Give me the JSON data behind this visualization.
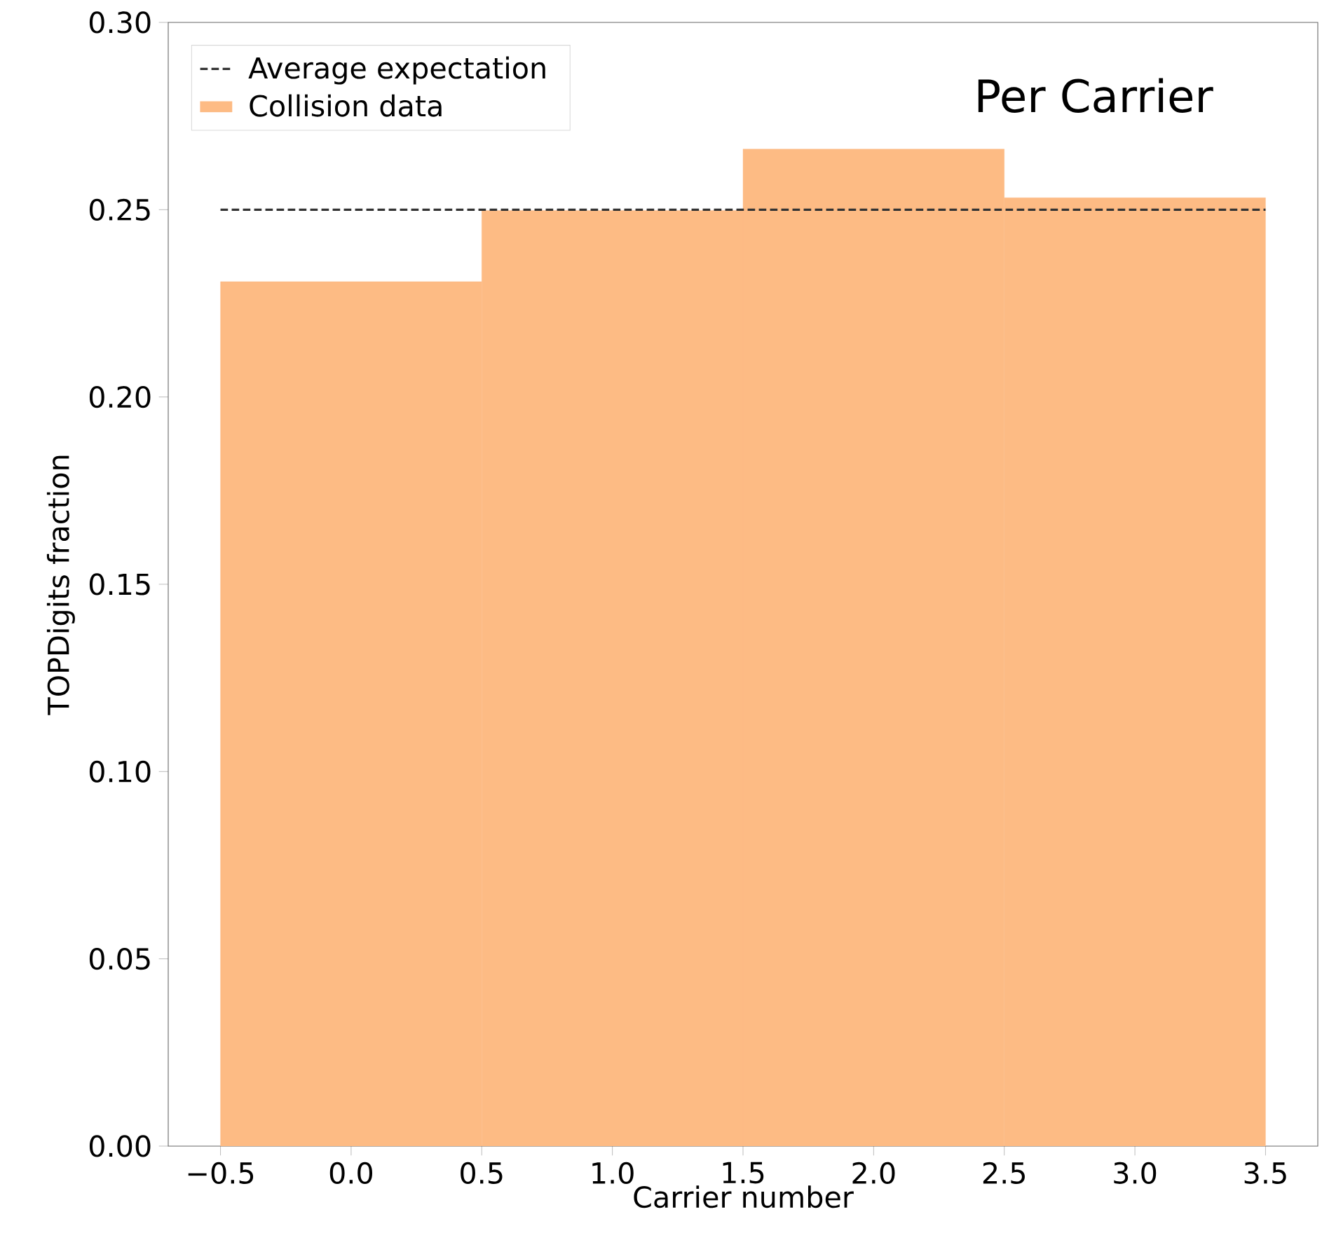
{
  "chart_data": {
    "type": "histogram",
    "annotations": [
      "Per Carrier"
    ],
    "xlabel": "Carrier number",
    "ylabel": "TOPDigits fraction",
    "bins": [
      -0.5,
      0.5,
      1.5,
      2.5,
      3.5
    ],
    "series": [
      {
        "type": "line",
        "name": "Average expectation",
        "color": "#333333",
        "line_style": "dashed",
        "x": [
          -0.5,
          3.5
        ],
        "values": [
          0.25,
          0.25
        ]
      },
      {
        "name": "Collision data",
        "color": "#fdbb84",
        "values": [
          0.2308,
          0.2498,
          0.2662,
          0.2532
        ]
      }
    ],
    "xlim": [
      -0.7,
      3.7
    ],
    "ylim": [
      0,
      0.3
    ],
    "xticks": [
      {
        "value": -0.5,
        "label": "−0.5"
      },
      {
        "value": 0,
        "label": "0.0"
      },
      {
        "value": 0.5,
        "label": "0.5"
      },
      {
        "value": 1,
        "label": "1.0"
      },
      {
        "value": 1.5,
        "label": "1.5"
      },
      {
        "value": 2,
        "label": "2.0"
      },
      {
        "value": 2.5,
        "label": "2.5"
      },
      {
        "value": 3,
        "label": "3.0"
      },
      {
        "value": 3.5,
        "label": "3.5"
      }
    ],
    "yticks": [
      {
        "value": 0,
        "label": "0.00"
      },
      {
        "value": 0.05,
        "label": "0.05"
      },
      {
        "value": 0.1,
        "label": "0.10"
      },
      {
        "value": 0.15,
        "label": "0.15"
      },
      {
        "value": 0.2,
        "label": "0.20"
      },
      {
        "value": 0.25,
        "label": "0.25"
      },
      {
        "value": 0.3,
        "label": "0.30"
      }
    ],
    "legend": "top left",
    "grid": false
  }
}
